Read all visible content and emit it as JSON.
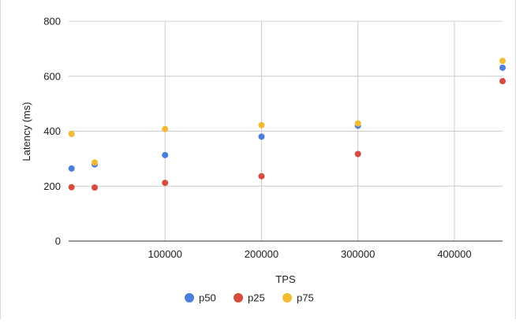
{
  "chart_data": {
    "type": "scatter",
    "title": "",
    "xlabel": "TPS",
    "ylabel": "Latency (ms)",
    "xlim": [
      0,
      450000
    ],
    "ylim": [
      0,
      800
    ],
    "x_ticks": [
      100000,
      200000,
      300000,
      400000
    ],
    "y_ticks": [
      0,
      200,
      400,
      600,
      800
    ],
    "x_tick_labels": [
      "100000",
      "200000",
      "300000",
      "400000"
    ],
    "y_tick_labels": [
      "0",
      "200",
      "400",
      "600",
      "800"
    ],
    "grid": true,
    "legend_position": "bottom",
    "series": [
      {
        "name": "p50",
        "color": "#4a7fe0",
        "points": [
          {
            "x": 3000,
            "y": 264
          },
          {
            "x": 27000,
            "y": 279
          },
          {
            "x": 100000,
            "y": 313
          },
          {
            "x": 200000,
            "y": 380
          },
          {
            "x": 300000,
            "y": 420
          },
          {
            "x": 450000,
            "y": 631
          }
        ]
      },
      {
        "name": "p25",
        "color": "#d64b3d",
        "points": [
          {
            "x": 3000,
            "y": 196
          },
          {
            "x": 27000,
            "y": 195
          },
          {
            "x": 100000,
            "y": 212
          },
          {
            "x": 200000,
            "y": 236
          },
          {
            "x": 300000,
            "y": 317
          },
          {
            "x": 450000,
            "y": 582
          }
        ]
      },
      {
        "name": "p75",
        "color": "#f2bb33",
        "points": [
          {
            "x": 3000,
            "y": 390
          },
          {
            "x": 27000,
            "y": 286
          },
          {
            "x": 100000,
            "y": 408
          },
          {
            "x": 200000,
            "y": 422
          },
          {
            "x": 300000,
            "y": 428
          },
          {
            "x": 450000,
            "y": 656
          }
        ]
      }
    ]
  }
}
